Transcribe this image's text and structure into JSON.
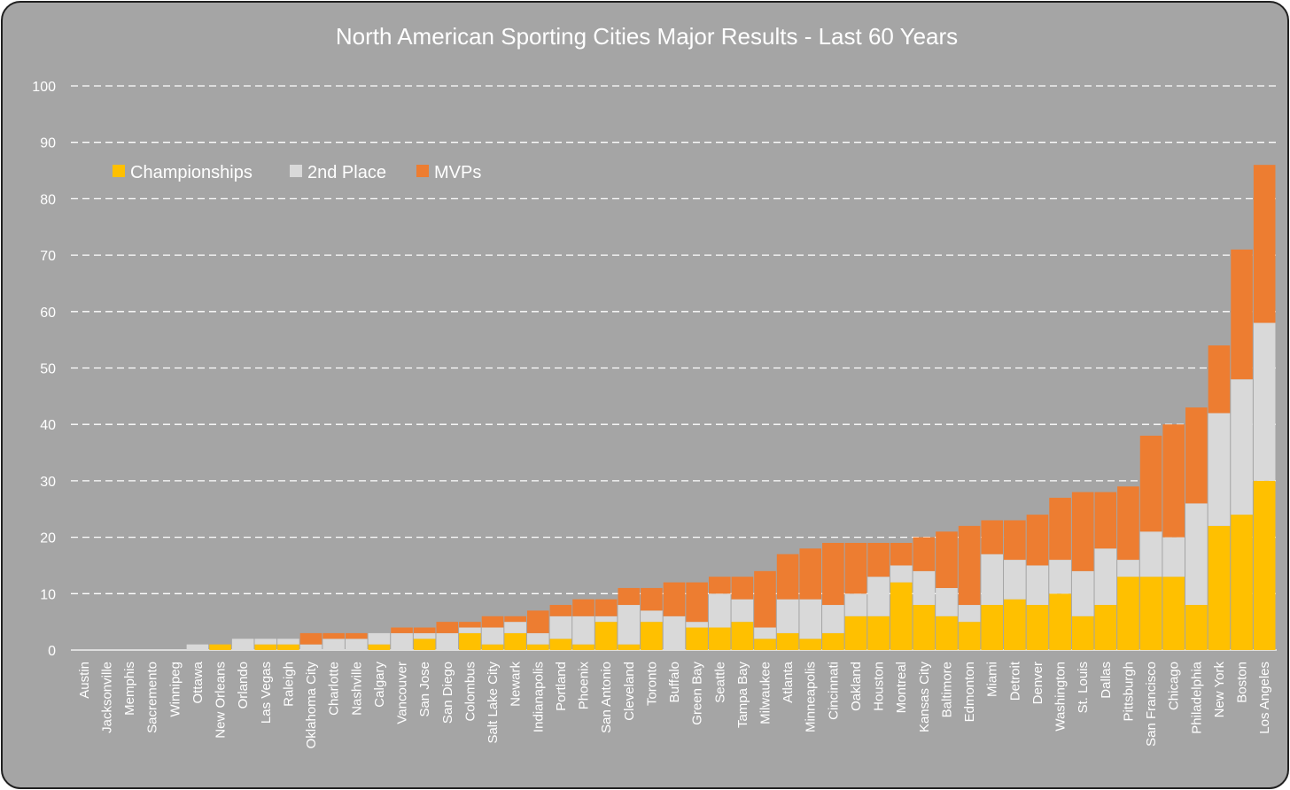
{
  "chart_data": {
    "type": "bar",
    "stacked": true,
    "title": "North American Sporting Cities Major Results - Last 60 Years",
    "ylim": [
      0,
      100
    ],
    "yticks": [
      0,
      10,
      20,
      30,
      40,
      50,
      60,
      70,
      80,
      90,
      100
    ],
    "grid": "horizontal-dashed",
    "legend_position": "top-left",
    "categories": [
      "Austin",
      "Jacksonville",
      "Memphis",
      "Sacremento",
      "Winnipeg",
      "Ottawa",
      "New Orleans",
      "Orlando",
      "Las Vegas",
      "Raleigh",
      "Oklahoma City",
      "Charlotte",
      "Nashville",
      "Calgary",
      "Vancouver",
      "San Jose",
      "San Diego",
      "Colombus",
      "Salt Lake City",
      "Newark",
      "Indianapolis",
      "Portland",
      "Phoenix",
      "San Antonio",
      "Cleveland",
      "Toronto",
      "Buffalo",
      "Green Bay",
      "Seattle",
      "Tampa Bay",
      "Milwaukee",
      "Atlanta",
      "Minneapolis",
      "Cincinnati",
      "Oakland",
      "Houston",
      "Montreal",
      "Kansas City",
      "Baltimore",
      "Edmonton",
      "Miami",
      "Detroit",
      "Denver",
      "Washington",
      "St. Louis",
      "Dallas",
      "Pittsburgh",
      "San Francisco",
      "Chicago",
      "Philadelphia",
      "New York",
      "Boston",
      "Los Angeles"
    ],
    "series": [
      {
        "name": "Championships",
        "color": "#ffc000",
        "values": [
          0,
          0,
          0,
          0,
          0,
          0,
          1,
          0,
          1,
          1,
          0,
          0,
          0,
          1,
          0,
          2,
          0,
          3,
          1,
          3,
          1,
          2,
          1,
          5,
          1,
          5,
          0,
          4,
          4,
          5,
          2,
          3,
          2,
          3,
          6,
          6,
          12,
          8,
          6,
          5,
          8,
          9,
          8,
          10,
          6,
          8,
          13,
          13,
          13,
          8,
          22,
          24,
          30
        ]
      },
      {
        "name": "2nd Place",
        "color": "#d9d9d9",
        "values": [
          0,
          0,
          0,
          0,
          0,
          1,
          0,
          2,
          1,
          1,
          1,
          2,
          2,
          2,
          3,
          1,
          3,
          1,
          3,
          2,
          2,
          4,
          5,
          1,
          7,
          2,
          6,
          1,
          6,
          4,
          2,
          6,
          7,
          5,
          4,
          7,
          3,
          6,
          5,
          3,
          9,
          7,
          7,
          6,
          8,
          10,
          3,
          8,
          7,
          18,
          20,
          24,
          28
        ]
      },
      {
        "name": "MVPs",
        "color": "#ed7d31",
        "values": [
          0,
          0,
          0,
          0,
          0,
          0,
          0,
          0,
          0,
          0,
          2,
          1,
          1,
          0,
          1,
          1,
          2,
          1,
          2,
          1,
          4,
          2,
          3,
          3,
          3,
          4,
          6,
          7,
          3,
          4,
          10,
          8,
          9,
          11,
          9,
          6,
          4,
          6,
          10,
          14,
          6,
          7,
          9,
          11,
          14,
          10,
          13,
          17,
          20,
          17,
          12,
          23,
          28
        ]
      }
    ]
  }
}
